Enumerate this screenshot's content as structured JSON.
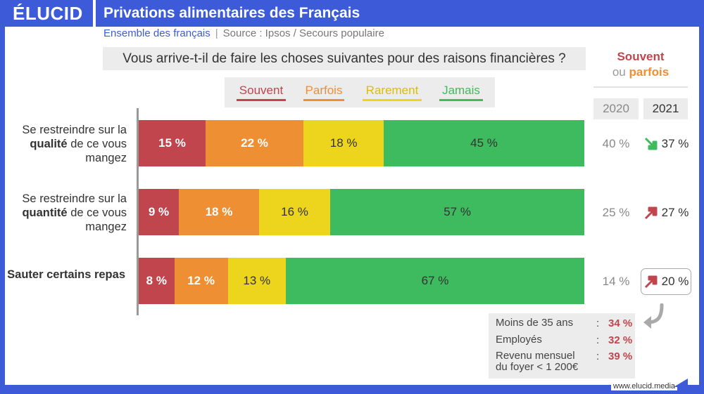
{
  "header": {
    "brand": "ÉLUCID",
    "title": "Privations alimentaires des Français"
  },
  "subtitle": {
    "scope": "Ensemble des français",
    "separator": "|",
    "source": "Source : Ipsos / Secours populaire"
  },
  "colors": {
    "souvent": "#c0454d",
    "parfois": "#ef8f33",
    "rarement": "#ecd51c",
    "jamais": "#3dbb5e",
    "brand": "#3d5bd9"
  },
  "chart_data": {
    "type": "bar",
    "orientation": "horizontal-stacked-100",
    "title": "Vous arrive-t-il de faire les choses suivantes pour des raisons financières ?",
    "categories": [
      {
        "pre": "Se restreindre sur la ",
        "bold": "qualité",
        "post": " de ce vous mangez"
      },
      {
        "pre": "Se restreindre sur la ",
        "bold": "quantité",
        "post": " de ce vous mangez"
      },
      {
        "pre": "",
        "bold": "Sauter certains repas",
        "post": ""
      }
    ],
    "series": [
      {
        "name": "Souvent",
        "values": [
          15,
          9,
          8
        ],
        "labels": [
          "15 %",
          "9 %",
          "8 %"
        ]
      },
      {
        "name": "Parfois",
        "values": [
          22,
          18,
          12
        ],
        "labels": [
          "22 %",
          "18 %",
          "12 %"
        ]
      },
      {
        "name": "Rarement",
        "values": [
          18,
          16,
          13
        ],
        "labels": [
          "18 %",
          "16 %",
          "13 %"
        ]
      },
      {
        "name": "Jamais",
        "values": [
          45,
          57,
          67
        ],
        "labels": [
          "45 %",
          "57 %",
          "67 %"
        ]
      }
    ],
    "xlim": [
      0,
      100
    ],
    "legend_position": "top"
  },
  "comparison": {
    "heading": {
      "souvent": "Souvent",
      "ou": "ou",
      "parfois": "parfois"
    },
    "years": [
      "2020",
      "2021"
    ],
    "rows": [
      {
        "v2020": "40 %",
        "v2021": "37 %",
        "trend": "down"
      },
      {
        "v2020": "25 %",
        "v2021": "27 %",
        "trend": "up"
      },
      {
        "v2020": "14 %",
        "v2021": "20 %",
        "trend": "up"
      }
    ]
  },
  "detail": {
    "rows": [
      {
        "label": "Moins de 35 ans",
        "colon": ":",
        "value": "34 %"
      },
      {
        "label": "Employés",
        "colon": ":",
        "value": "32 %"
      },
      {
        "label": "Revenu mensuel du foyer < 1 200€",
        "colon": ":",
        "value": "39 %"
      }
    ]
  },
  "footer": {
    "url": "www.elucid.media"
  }
}
